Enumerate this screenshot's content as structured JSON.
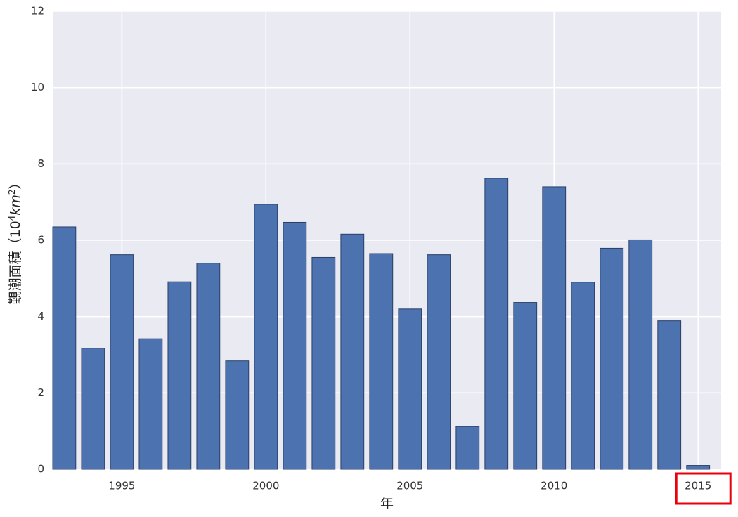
{
  "chart_data": {
    "type": "bar",
    "title": "",
    "xlabel": "年",
    "ylabel": "覲潮面積（10⁴km²）",
    "ylabel_main": "覲潮面積（10",
    "ylabel_sup1": "4",
    "ylabel_unit": "km",
    "ylabel_sup2": "2",
    "ylabel_close": "）",
    "x": [
      1993,
      1994,
      1995,
      1996,
      1997,
      1998,
      1999,
      2000,
      2001,
      2002,
      2003,
      2004,
      2005,
      2006,
      2007,
      2008,
      2009,
      2010,
      2011,
      2012,
      2013,
      2014,
      2015
    ],
    "values": [
      6.35,
      3.17,
      5.62,
      3.42,
      4.91,
      5.4,
      2.84,
      6.94,
      6.47,
      5.55,
      6.16,
      5.65,
      4.2,
      5.62,
      1.12,
      7.62,
      4.37,
      7.4,
      4.9,
      5.79,
      6.01,
      3.89,
      0.1
    ],
    "ylim": [
      0,
      12
    ],
    "xlim": [
      1992.6,
      2015.8
    ],
    "yticks": [
      "0",
      "2",
      "4",
      "6",
      "8",
      "10",
      "12"
    ],
    "xticks": [
      "1995",
      "2000",
      "2005",
      "2010",
      "2015"
    ],
    "grid": true,
    "legend": "none",
    "colors": {
      "bar": "#4c72b0",
      "bar_edge": "#2b3f66",
      "plot_bg": "#eaeaf2",
      "grid": "#ffffff",
      "highlight": "#e8000b"
    },
    "highlight_tick": "2015"
  }
}
